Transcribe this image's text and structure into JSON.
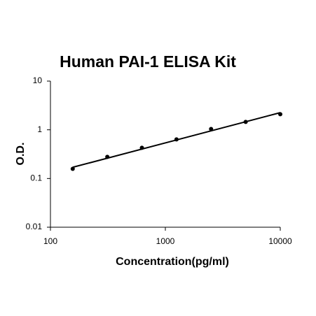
{
  "chart_data": {
    "type": "scatter",
    "title": "Human PAI-1 ELISA Kit",
    "x_label": "Concentration(pg/ml)",
    "y_label": "O.D.",
    "x": [
      156.25,
      312.5,
      625,
      1250,
      2500,
      5000,
      10000
    ],
    "values": [
      0.158,
      0.278,
      0.428,
      0.635,
      1.04,
      1.45,
      2.09
    ],
    "color": "#000000",
    "trendline": {
      "x": [
        156.25,
        10000
      ],
      "values": [
        0.17,
        2.25
      ]
    },
    "xscale": "log",
    "yscale": "log",
    "xlim": [
      100,
      10000
    ],
    "ylim": [
      0.01,
      10
    ],
    "xticks": [
      100,
      1000,
      10000
    ],
    "yticks": [
      0.01,
      0.1,
      1,
      10
    ],
    "grid": false
  }
}
